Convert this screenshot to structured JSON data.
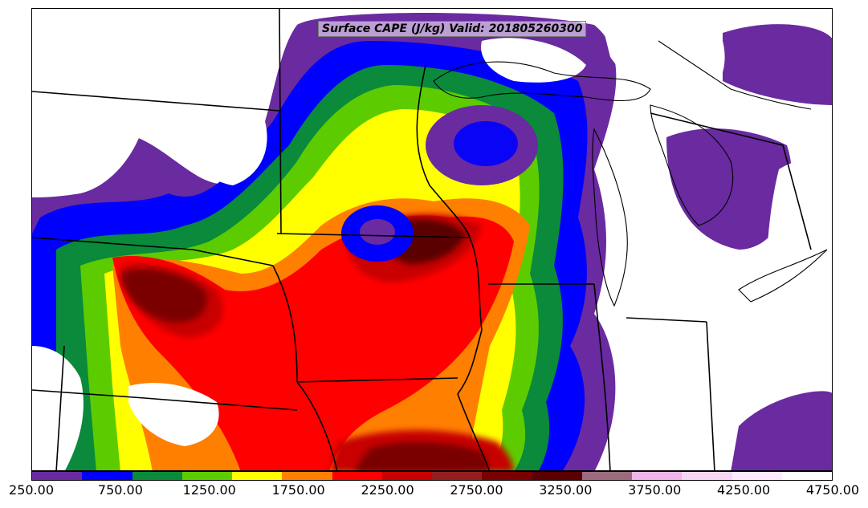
{
  "title": "Surface CAPE (J/kg) Valid: 201805260300",
  "colorbar": {
    "colors": [
      "#6a2aa0",
      "#0000ff",
      "#0a8a3a",
      "#5ccc00",
      "#ffff00",
      "#ff7f00",
      "#ff0000",
      "#c80000",
      "#961e1e",
      "#7a0000",
      "#5a0000",
      "#9c6b7e",
      "#f0b4e8",
      "#f7d6f4",
      "#ffe9ff",
      "#ffffff"
    ],
    "tick_labels": [
      "250.00",
      "750.00",
      "1250.00",
      "1750.00",
      "2250.00",
      "2750.00",
      "3250.00",
      "3750.00",
      "4250.00",
      "4750.00"
    ]
  },
  "legend_values": {
    "min": 250,
    "max": 4750,
    "step": 250,
    "units": "J/kg"
  }
}
